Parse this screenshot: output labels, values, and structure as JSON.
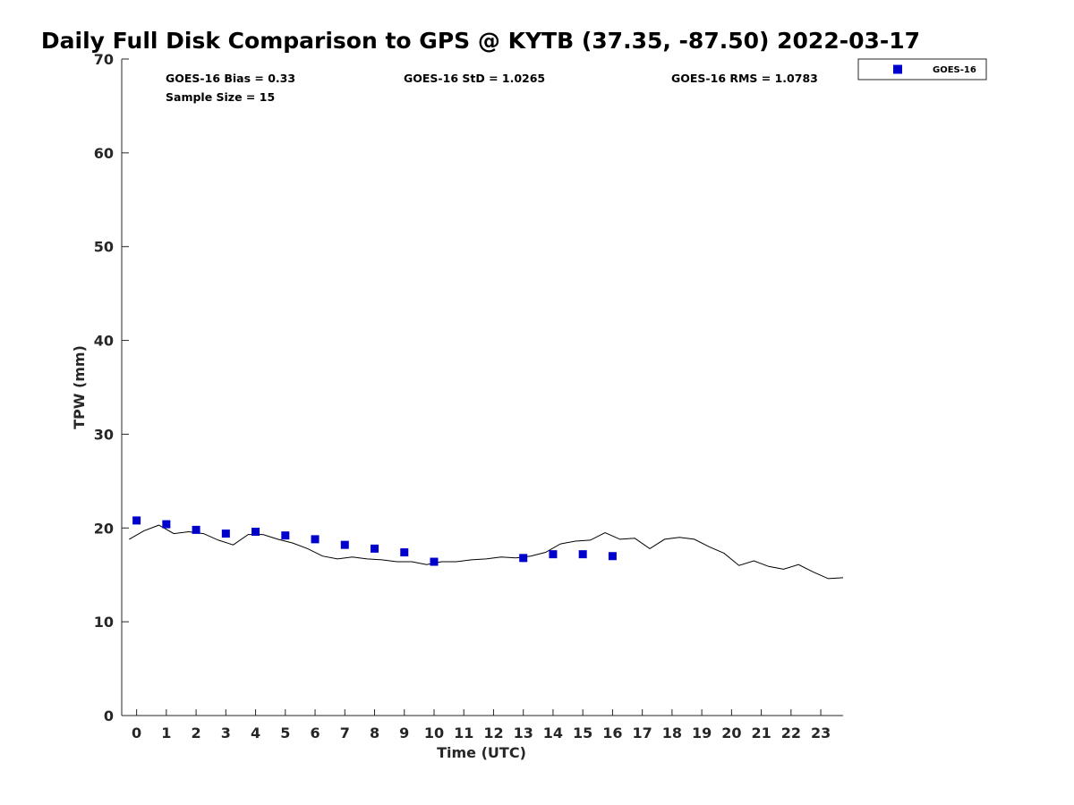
{
  "chart_data": {
    "type": "scatter",
    "title": "Daily Full Disk Comparison to GPS @ KYTB (37.35, -87.50) 2022-03-17",
    "xlabel": "Time (UTC)",
    "ylabel": "TPW (mm)",
    "xlim": [
      -0.5,
      23.75
    ],
    "ylim": [
      0,
      70
    ],
    "xticks": [
      0,
      1,
      2,
      3,
      4,
      5,
      6,
      7,
      8,
      9,
      10,
      11,
      12,
      13,
      14,
      15,
      16,
      17,
      18,
      19,
      20,
      21,
      22,
      23
    ],
    "yticks": [
      0,
      10,
      20,
      30,
      40,
      50,
      60,
      70
    ],
    "grid": false,
    "legend_position": "outside-top-right",
    "stats": {
      "bias": "GOES-16 Bias = 0.33",
      "sample_size": "Sample Size = 15",
      "std": "GOES-16 StD = 1.0265",
      "rms": "GOES-16 RMS = 1.0783"
    },
    "series": [
      {
        "name": "GOES-16",
        "kind": "scatter",
        "marker": "square",
        "color": "#0000cc",
        "x": [
          0,
          1,
          2,
          3,
          4,
          5,
          6,
          7,
          8,
          9,
          10,
          13,
          14,
          15,
          16
        ],
        "y": [
          20.8,
          20.4,
          19.8,
          19.4,
          19.6,
          19.2,
          18.8,
          18.2,
          17.8,
          17.4,
          16.4,
          16.8,
          17.2,
          17.2,
          17.0
        ]
      },
      {
        "kind": "line",
        "color": "#000000",
        "x": [
          -0.25,
          0.25,
          0.75,
          1.25,
          1.75,
          2.25,
          2.75,
          3.25,
          3.75,
          4.25,
          4.75,
          5.25,
          5.75,
          6.25,
          6.75,
          7.25,
          7.75,
          8.25,
          8.75,
          9.25,
          9.75,
          10.25,
          10.75,
          11.25,
          11.75,
          12.25,
          12.75,
          13.25,
          13.75,
          14.25,
          14.75,
          15.25,
          15.75,
          16.25,
          16.75,
          17.25,
          17.75,
          18.25,
          18.75,
          19.25,
          19.75,
          20.25,
          20.75,
          21.25,
          21.75,
          22.25,
          22.75,
          23.25,
          23.75
        ],
        "y": [
          18.8,
          19.7,
          20.3,
          19.4,
          19.6,
          19.4,
          18.7,
          18.2,
          19.3,
          19.3,
          18.8,
          18.4,
          17.8,
          17.0,
          16.7,
          16.9,
          16.7,
          16.6,
          16.4,
          16.4,
          16.1,
          16.4,
          16.4,
          16.6,
          16.7,
          16.9,
          16.8,
          17.0,
          17.4,
          18.3,
          18.6,
          18.7,
          19.5,
          18.8,
          18.9,
          17.8,
          18.8,
          19.0,
          18.8,
          18.0,
          17.3,
          16.0,
          16.5,
          15.9,
          15.6,
          16.1,
          15.3,
          14.6,
          14.7
        ]
      }
    ]
  }
}
